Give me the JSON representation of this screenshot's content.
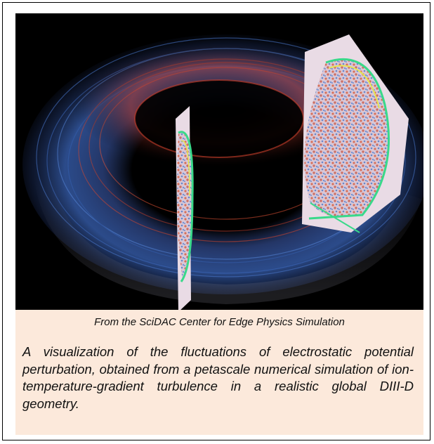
{
  "figure": {
    "visual_description_icon": "torus-turbulence-visualization",
    "colors": {
      "panel_background": "#fce9db",
      "visual_background": "#000000",
      "torus_blue": "#3f6fc4",
      "torus_red": "#d4452e",
      "cross_section_fill": "#e7d6e0",
      "separatrix_green": "#39d98a",
      "separatrix_yellow": "#e6e84a"
    },
    "credit": "From the SciDAC Center for Edge Physics Simulation",
    "description": "A visualization of the fluctuations of electrostatic potential perturbation, obtained from a petascale numerical simulation of ion-temperature-gradient turbulence in a realistic global DIII-D geometry."
  }
}
